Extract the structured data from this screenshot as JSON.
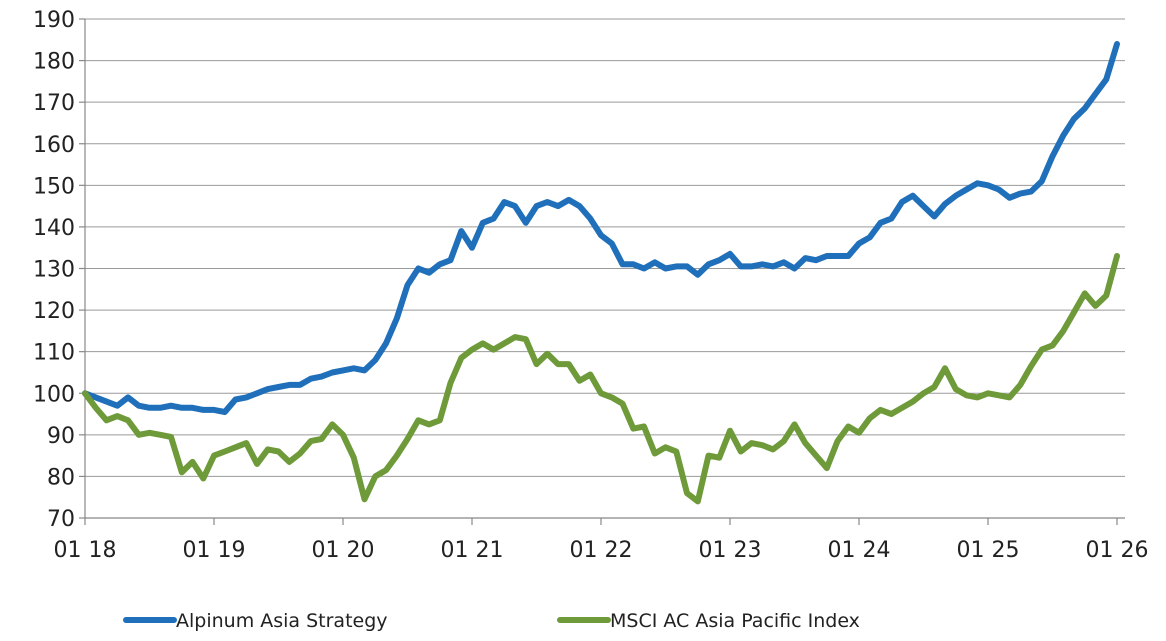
{
  "chart_data": {
    "type": "line",
    "title": "",
    "xlabel": "",
    "ylabel": "",
    "ylim": [
      70,
      190
    ],
    "yticks": [
      70,
      80,
      90,
      100,
      110,
      120,
      130,
      140,
      150,
      160,
      170,
      180,
      190
    ],
    "xticks": [
      "01 18",
      "01 19",
      "01 20",
      "01 21",
      "01 22",
      "01 23",
      "01 24",
      "01 25",
      "01 26"
    ],
    "grid": "horizontal",
    "legend_position": "bottom",
    "series": [
      {
        "name": "Alpinum Asia Strategy",
        "color": "#1f6fba",
        "points": [
          [
            "2018-01",
            100
          ],
          [
            "2018-02",
            99
          ],
          [
            "2018-03",
            98
          ],
          [
            "2018-04",
            97
          ],
          [
            "2018-05",
            99
          ],
          [
            "2018-06",
            97
          ],
          [
            "2018-07",
            96.5
          ],
          [
            "2018-08",
            96.5
          ],
          [
            "2018-09",
            97
          ],
          [
            "2018-10",
            96.5
          ],
          [
            "2018-11",
            96.5
          ],
          [
            "2018-12",
            96
          ],
          [
            "2019-01",
            96
          ],
          [
            "2019-02",
            95.5
          ],
          [
            "2019-03",
            98.5
          ],
          [
            "2019-04",
            99
          ],
          [
            "2019-05",
            100
          ],
          [
            "2019-06",
            101
          ],
          [
            "2019-07",
            101.5
          ],
          [
            "2019-08",
            102
          ],
          [
            "2019-09",
            102
          ],
          [
            "2019-10",
            103.5
          ],
          [
            "2019-11",
            104
          ],
          [
            "2019-12",
            105
          ],
          [
            "2020-01",
            105.5
          ],
          [
            "2020-02",
            106
          ],
          [
            "2020-03",
            105.5
          ],
          [
            "2020-04",
            108
          ],
          [
            "2020-05",
            112
          ],
          [
            "2020-06",
            118
          ],
          [
            "2020-07",
            126
          ],
          [
            "2020-08",
            130
          ],
          [
            "2020-09",
            129
          ],
          [
            "2020-10",
            131
          ],
          [
            "2020-11",
            132
          ],
          [
            "2020-12",
            139
          ],
          [
            "2021-01",
            135
          ],
          [
            "2021-02",
            141
          ],
          [
            "2021-03",
            142
          ],
          [
            "2021-04",
            146
          ],
          [
            "2021-05",
            145
          ],
          [
            "2021-06",
            141
          ],
          [
            "2021-07",
            145
          ],
          [
            "2021-08",
            146
          ],
          [
            "2021-09",
            145
          ],
          [
            "2021-10",
            146.5
          ],
          [
            "2021-11",
            145
          ],
          [
            "2021-12",
            142
          ],
          [
            "2022-01",
            138
          ],
          [
            "2022-02",
            136
          ],
          [
            "2022-03",
            131
          ],
          [
            "2022-04",
            131
          ],
          [
            "2022-05",
            130
          ],
          [
            "2022-06",
            131.5
          ],
          [
            "2022-07",
            130
          ],
          [
            "2022-08",
            130.5
          ],
          [
            "2022-09",
            130.5
          ],
          [
            "2022-10",
            128.5
          ],
          [
            "2022-11",
            131
          ],
          [
            "2022-12",
            132
          ],
          [
            "2023-01",
            133.5
          ],
          [
            "2023-02",
            130.5
          ],
          [
            "2023-03",
            130.5
          ],
          [
            "2023-04",
            131
          ],
          [
            "2023-05",
            130.5
          ],
          [
            "2023-06",
            131.5
          ],
          [
            "2023-07",
            130
          ],
          [
            "2023-08",
            132.5
          ],
          [
            "2023-09",
            132
          ],
          [
            "2023-10",
            133
          ],
          [
            "2023-11",
            133
          ],
          [
            "2023-12",
            133
          ],
          [
            "2024-01",
            136
          ],
          [
            "2024-02",
            137.5
          ],
          [
            "2024-03",
            141
          ],
          [
            "2024-04",
            142
          ],
          [
            "2024-05",
            146
          ],
          [
            "2024-06",
            147.5
          ],
          [
            "2024-07",
            145
          ],
          [
            "2024-08",
            142.5
          ],
          [
            "2024-09",
            145.5
          ],
          [
            "2024-10",
            147.5
          ],
          [
            "2024-11",
            149
          ],
          [
            "2024-12",
            150.5
          ],
          [
            "2025-01",
            150
          ],
          [
            "2025-02",
            149
          ],
          [
            "2025-03",
            147
          ],
          [
            "2025-04",
            148
          ],
          [
            "2025-05",
            148.5
          ],
          [
            "2025-06",
            151
          ],
          [
            "2025-07",
            157
          ],
          [
            "2025-08",
            162
          ],
          [
            "2025-09",
            166
          ],
          [
            "2025-10",
            168.5
          ],
          [
            "2025-11",
            172
          ],
          [
            "2025-12",
            175.5
          ],
          [
            "2026-01",
            184
          ]
        ]
      },
      {
        "name": "MSCI AC Asia Pacific Index",
        "color": "#6e9a3a",
        "points": [
          [
            "2018-01",
            100
          ],
          [
            "2018-02",
            96.5
          ],
          [
            "2018-03",
            93.5
          ],
          [
            "2018-04",
            94.5
          ],
          [
            "2018-05",
            93.5
          ],
          [
            "2018-06",
            90
          ],
          [
            "2018-07",
            90.5
          ],
          [
            "2018-08",
            90
          ],
          [
            "2018-09",
            89.5
          ],
          [
            "2018-10",
            81
          ],
          [
            "2018-11",
            83.5
          ],
          [
            "2018-12",
            79.5
          ],
          [
            "2019-01",
            85
          ],
          [
            "2019-02",
            86
          ],
          [
            "2019-03",
            87
          ],
          [
            "2019-04",
            88
          ],
          [
            "2019-05",
            83
          ],
          [
            "2019-06",
            86.5
          ],
          [
            "2019-07",
            86
          ],
          [
            "2019-08",
            83.5
          ],
          [
            "2019-09",
            85.5
          ],
          [
            "2019-10",
            88.5
          ],
          [
            "2019-11",
            89
          ],
          [
            "2019-12",
            92.5
          ],
          [
            "2020-01",
            90
          ],
          [
            "2020-02",
            84.5
          ],
          [
            "2020-03",
            74.5
          ],
          [
            "2020-04",
            80
          ],
          [
            "2020-05",
            81.5
          ],
          [
            "2020-06",
            85
          ],
          [
            "2020-07",
            89
          ],
          [
            "2020-08",
            93.5
          ],
          [
            "2020-09",
            92.5
          ],
          [
            "2020-10",
            93.5
          ],
          [
            "2020-11",
            102.5
          ],
          [
            "2020-12",
            108.5
          ],
          [
            "2021-01",
            110.5
          ],
          [
            "2021-02",
            112
          ],
          [
            "2021-03",
            110.5
          ],
          [
            "2021-04",
            112
          ],
          [
            "2021-05",
            113.5
          ],
          [
            "2021-06",
            113
          ],
          [
            "2021-07",
            107
          ],
          [
            "2021-08",
            109.5
          ],
          [
            "2021-09",
            107
          ],
          [
            "2021-10",
            107
          ],
          [
            "2021-11",
            103
          ],
          [
            "2021-12",
            104.5
          ],
          [
            "2022-01",
            100
          ],
          [
            "2022-02",
            99
          ],
          [
            "2022-03",
            97.5
          ],
          [
            "2022-04",
            91.5
          ],
          [
            "2022-05",
            92
          ],
          [
            "2022-06",
            85.5
          ],
          [
            "2022-07",
            87
          ],
          [
            "2022-08",
            86
          ],
          [
            "2022-09",
            76
          ],
          [
            "2022-10",
            74
          ],
          [
            "2022-11",
            85
          ],
          [
            "2022-12",
            84.5
          ],
          [
            "2023-01",
            91
          ],
          [
            "2023-02",
            86
          ],
          [
            "2023-03",
            88
          ],
          [
            "2023-04",
            87.5
          ],
          [
            "2023-05",
            86.5
          ],
          [
            "2023-06",
            88.5
          ],
          [
            "2023-07",
            92.5
          ],
          [
            "2023-08",
            88
          ],
          [
            "2023-09",
            85
          ],
          [
            "2023-10",
            82
          ],
          [
            "2023-11",
            88.5
          ],
          [
            "2023-12",
            92
          ],
          [
            "2024-01",
            90.5
          ],
          [
            "2024-02",
            94
          ],
          [
            "2024-03",
            96
          ],
          [
            "2024-04",
            95
          ],
          [
            "2024-05",
            96.5
          ],
          [
            "2024-06",
            98
          ],
          [
            "2024-07",
            100
          ],
          [
            "2024-08",
            101.5
          ],
          [
            "2024-09",
            106
          ],
          [
            "2024-10",
            101
          ],
          [
            "2024-11",
            99.5
          ],
          [
            "2024-12",
            99
          ],
          [
            "2025-01",
            100
          ],
          [
            "2025-02",
            99.5
          ],
          [
            "2025-03",
            99
          ],
          [
            "2025-04",
            102
          ],
          [
            "2025-05",
            106.5
          ],
          [
            "2025-06",
            110.5
          ],
          [
            "2025-07",
            111.5
          ],
          [
            "2025-08",
            115
          ],
          [
            "2025-09",
            119.5
          ],
          [
            "2025-10",
            124
          ],
          [
            "2025-11",
            121
          ],
          [
            "2025-12",
            123.5
          ],
          [
            "2026-01",
            133
          ]
        ]
      }
    ]
  }
}
